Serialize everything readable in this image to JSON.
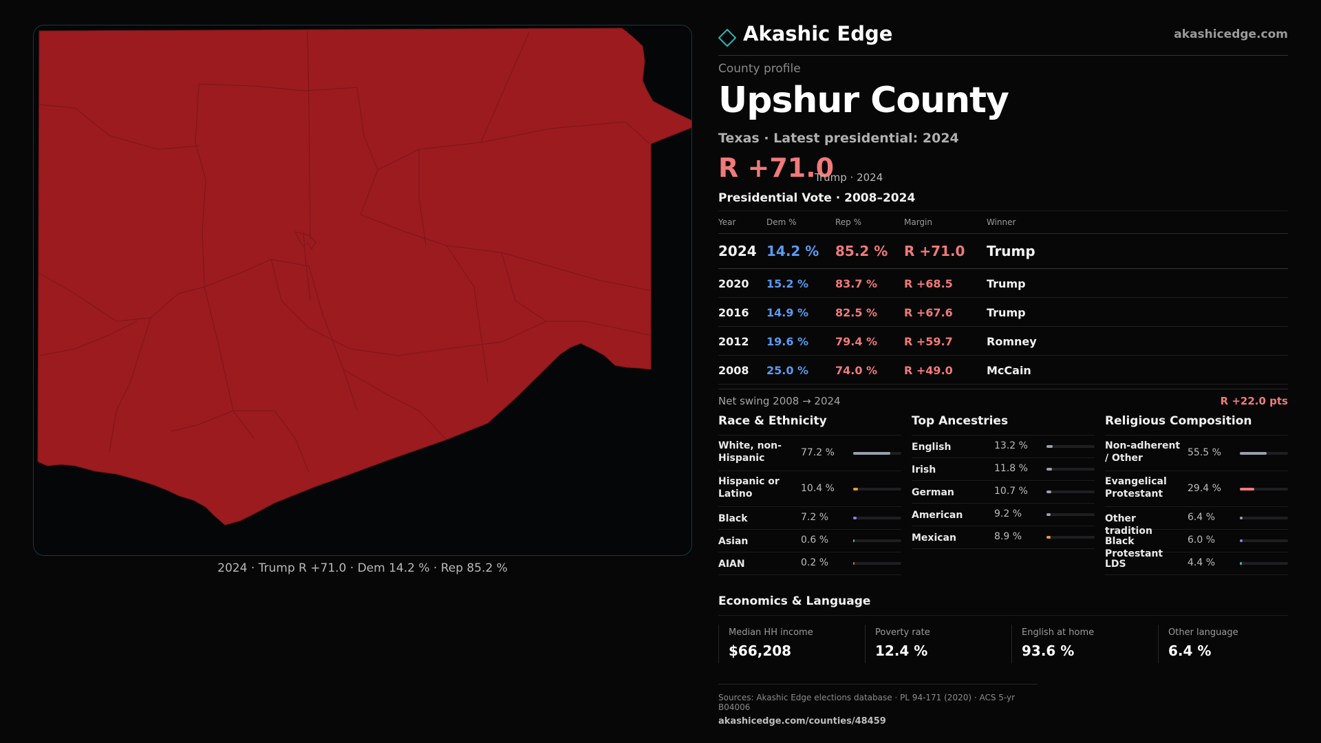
{
  "brand": {
    "name": "Akashic Edge",
    "url": "akashicedge.com"
  },
  "profile": {
    "label": "County profile",
    "county": "Upshur County",
    "subtitle": "Texas · Latest presidential: 2024",
    "big_margin": "R +71.0",
    "big_margin_sub": "Trump · 2024"
  },
  "map": {
    "caption": "2024 · Trump R +71.0 · Dem 14.2 % · Rep 85.2 %",
    "fill_color": "#9b1b1f",
    "border_color": "#163a40"
  },
  "vote": {
    "title": "Presidential Vote · 2008–2024",
    "headers": {
      "year": "Year",
      "dem": "Dem %",
      "rep": "Rep %",
      "margin": "Margin",
      "winner": "Winner"
    },
    "rows": [
      {
        "year": "2024",
        "dem": "14.2 %",
        "rep": "85.2 %",
        "margin": "R +71.0",
        "winner": "Trump"
      },
      {
        "year": "2020",
        "dem": "15.2 %",
        "rep": "83.7 %",
        "margin": "R +68.5",
        "winner": "Trump"
      },
      {
        "year": "2016",
        "dem": "14.9 %",
        "rep": "82.5 %",
        "margin": "R +67.6",
        "winner": "Trump"
      },
      {
        "year": "2012",
        "dem": "19.6 %",
        "rep": "79.4 %",
        "margin": "R +59.7",
        "winner": "Romney"
      },
      {
        "year": "2008",
        "dem": "25.0 %",
        "rep": "74.0 %",
        "margin": "R +49.0",
        "winner": "McCain"
      }
    ],
    "swing_label": "Net swing 2008 → 2024",
    "swing_value": "R +22.0 pts"
  },
  "race": {
    "title": "Race & Ethnicity",
    "items": [
      {
        "label": "White, non-Hispanic",
        "pct": "77.2 %",
        "value": 77.2,
        "color": "#9aa0ac"
      },
      {
        "label": "Hispanic or Latino",
        "pct": "10.4 %",
        "value": 10.4,
        "color": "#e0a030"
      },
      {
        "label": "Black",
        "pct": "7.2 %",
        "value": 7.2,
        "color": "#8f7fe0"
      },
      {
        "label": "Asian",
        "pct": "0.6 %",
        "value": 0.6,
        "color": "#3fb8a8"
      },
      {
        "label": "AIAN",
        "pct": "0.2 %",
        "value": 0.2,
        "color": "#c07040"
      }
    ]
  },
  "ancestry": {
    "title": "Top Ancestries",
    "items": [
      {
        "label": "English",
        "pct": "13.2 %",
        "value": 13.2,
        "color": "#9aa0ac"
      },
      {
        "label": "Irish",
        "pct": "11.8 %",
        "value": 11.8,
        "color": "#9aa0ac"
      },
      {
        "label": "German",
        "pct": "10.7 %",
        "value": 10.7,
        "color": "#9aa0ac"
      },
      {
        "label": "American",
        "pct": "9.2 %",
        "value": 9.2,
        "color": "#9aa0ac"
      },
      {
        "label": "Mexican",
        "pct": "8.9 %",
        "value": 8.9,
        "color": "#e0a030"
      }
    ]
  },
  "religion": {
    "title": "Religious Composition",
    "items": [
      {
        "label": "Non-adherent / Other",
        "pct": "55.5 %",
        "value": 55.5,
        "color": "#9aa0ac"
      },
      {
        "label": "Evangelical Protestant",
        "pct": "29.4 %",
        "value": 29.4,
        "color": "#f07a7a"
      },
      {
        "label": "Other tradition",
        "pct": "6.4 %",
        "value": 6.4,
        "color": "#9aa0ac"
      },
      {
        "label": "Black Protestant",
        "pct": "6.0 %",
        "value": 6.0,
        "color": "#8f7fe0"
      },
      {
        "label": "LDS",
        "pct": "4.4 %",
        "value": 4.4,
        "color": "#3fb8a8"
      }
    ]
  },
  "economics": {
    "title": "Economics & Language",
    "cards": [
      {
        "label": "Median HH income",
        "value": "$66,208"
      },
      {
        "label": "Poverty rate",
        "value": "12.4 %"
      },
      {
        "label": "English at home",
        "value": "93.6 %"
      },
      {
        "label": "Other language",
        "value": "6.4 %"
      }
    ]
  },
  "sources": {
    "line1": "Sources: Akashic Edge elections database · PL 94-171 (2020) · ACS 5-yr B04006",
    "line2": "akashicedge.com/counties/48459"
  }
}
